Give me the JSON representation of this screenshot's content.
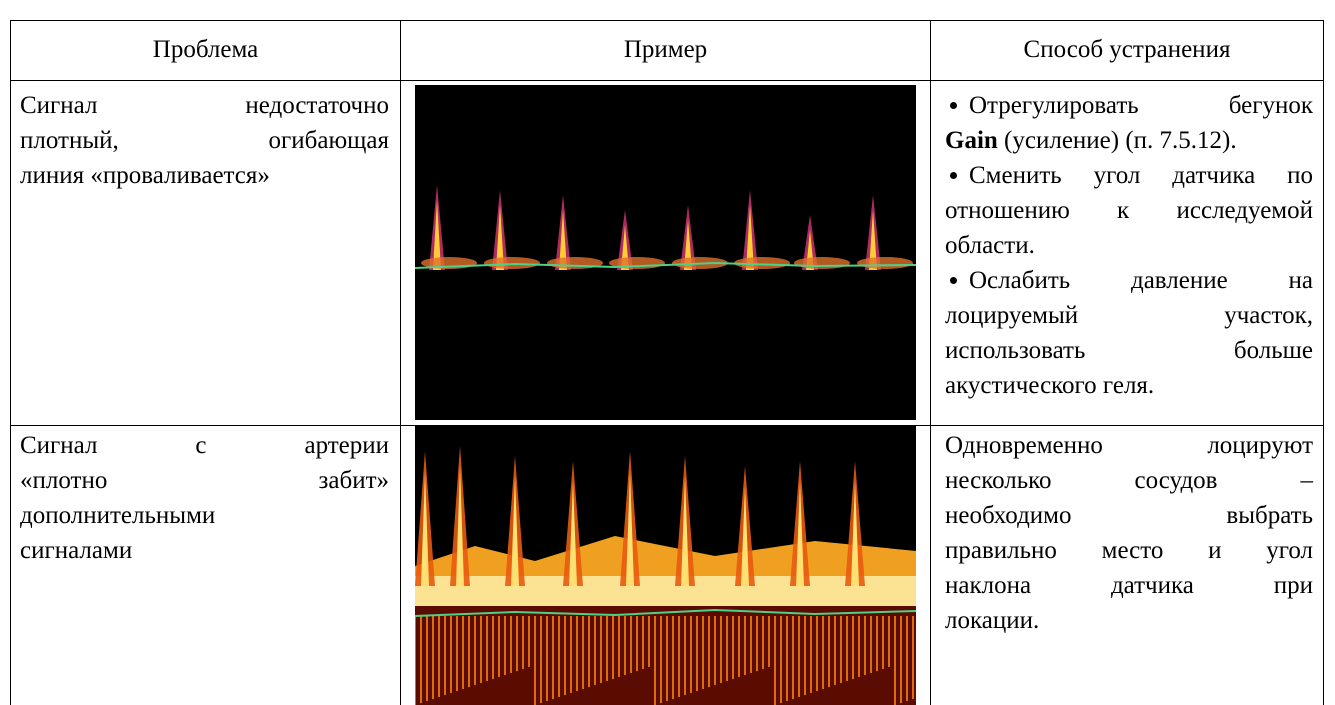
{
  "table": {
    "header": [
      "Проблема",
      "Пример",
      "Способ устранения"
    ],
    "rows": [
      {
        "problem": [
          [
            "Сигнал",
            "недостаточно"
          ],
          [
            "плотный,",
            "огибающая"
          ],
          [
            "линия «проваливается»"
          ]
        ],
        "solution": [
          [
            [
              "Отрегулировать",
              "бегунок"
            ],
            [
              {
                "bold": "Gain",
                "text": " (усиление) (п. 7.5.12)."
              }
            ]
          ],
          [
            [
              "Сменить угол датчика по"
            ],
            [
              "отношению к исследуемой"
            ],
            [
              "области."
            ]
          ],
          [
            [
              "Ослабить",
              "давление",
              "на"
            ],
            [
              "лоцируемый",
              "участок,"
            ],
            [
              "использовать",
              "больше"
            ],
            [
              "акустического геля."
            ]
          ]
        ]
      },
      {
        "problem": [
          [
            "Сигнал",
            "с",
            "артерии"
          ],
          [
            "«плотно",
            "забит»"
          ],
          [
            "дополнительными"
          ],
          [
            "сигналами"
          ]
        ],
        "solution": [
          [
            [
              "Одновременно",
              "лоцируют"
            ],
            [
              "несколько",
              "сосудов",
              "–"
            ],
            [
              "необходимо",
              "выбрать"
            ],
            [
              "правильно место и угол"
            ],
            [
              "наклона",
              "датчика",
              "при"
            ],
            [
              "локации."
            ]
          ]
        ]
      }
    ]
  }
}
